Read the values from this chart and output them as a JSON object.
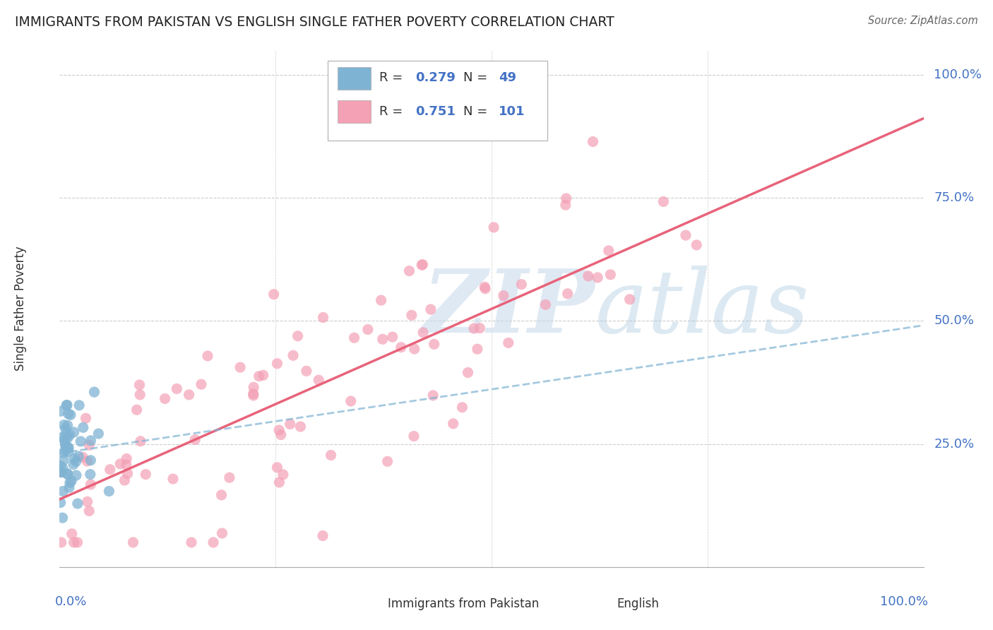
{
  "title": "IMMIGRANTS FROM PAKISTAN VS ENGLISH SINGLE FATHER POVERTY CORRELATION CHART",
  "source": "Source: ZipAtlas.com",
  "ylabel": "Single Father Poverty",
  "series": [
    {
      "name": "Immigrants from Pakistan",
      "color": "#7fb3d3",
      "R": 0.279,
      "N": 49,
      "line_color": "#7fb3d3",
      "line_style": "--"
    },
    {
      "name": "English",
      "color": "#f4a0b5",
      "R": 0.751,
      "N": 101,
      "line_color": "#e8637a",
      "line_style": "-"
    }
  ],
  "watermark_zip": "ZIP",
  "watermark_atlas": "atlas",
  "background_color": "#ffffff",
  "grid_color": "#dddddd",
  "title_color": "#222222",
  "source_color": "#666666",
  "axis_color": "#4472c4",
  "legend_text_color": "#333333",
  "legend_val_color": "#4472c4"
}
